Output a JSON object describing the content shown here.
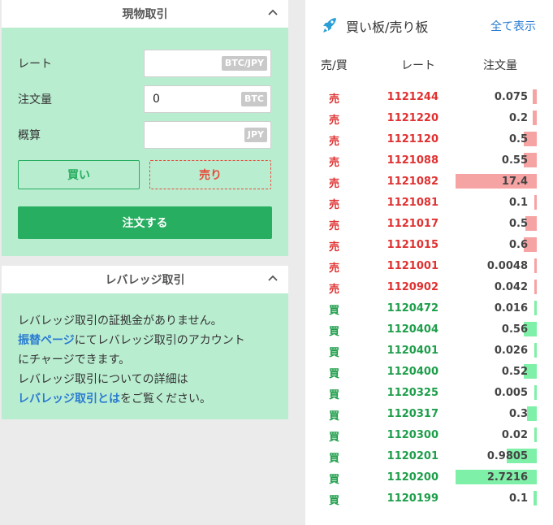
{
  "spot": {
    "title": "現物取引",
    "rate_label": "レート",
    "rate_value": "",
    "rate_unit": "BTC/JPY",
    "amount_label": "注文量",
    "amount_value": "0",
    "amount_unit": "BTC",
    "estimate_label": "概算",
    "estimate_value": "",
    "estimate_unit": "JPY",
    "buy_label": "買い",
    "sell_label": "売り",
    "order_label": "注文する"
  },
  "leverage": {
    "title": "レバレッジ取引",
    "line1": "レバレッジ取引の証拠金がありません。",
    "link1": "振替ページ",
    "line2_rest": "にてレバレッジ取引のアカウント",
    "line3": "にチャージできます。",
    "line4": "レバレッジ取引についての詳細は",
    "link2": "レバレッジ取引とは",
    "line5_rest": "をご覧ください。"
  },
  "orderbook": {
    "title": "買い板/売り板",
    "show_all": "全て表示",
    "col_side": "売/買",
    "col_rate": "レート",
    "col_qty": "注文量",
    "colors": {
      "sell": "#e03131",
      "buy": "#1e9e4a"
    },
    "rows": [
      {
        "side": "売",
        "type": "sell",
        "price": "1121244",
        "qty": "0.075",
        "depth": 0.05
      },
      {
        "side": "売",
        "type": "sell",
        "price": "1121220",
        "qty": "0.2",
        "depth": 0.05
      },
      {
        "side": "売",
        "type": "sell",
        "price": "1121120",
        "qty": "0.5",
        "depth": 0.16
      },
      {
        "side": "売",
        "type": "sell",
        "price": "1121088",
        "qty": "0.55",
        "depth": 0.16
      },
      {
        "side": "売",
        "type": "sell",
        "price": "1121082",
        "qty": "17.4",
        "depth": 1.0
      },
      {
        "side": "売",
        "type": "sell",
        "price": "1121081",
        "qty": "0.1",
        "depth": 0.02
      },
      {
        "side": "売",
        "type": "sell",
        "price": "1121017",
        "qty": "0.5",
        "depth": 0.14
      },
      {
        "side": "売",
        "type": "sell",
        "price": "1121015",
        "qty": "0.6",
        "depth": 0.16
      },
      {
        "side": "売",
        "type": "sell",
        "price": "1121001",
        "qty": "0.0048",
        "depth": 0.02
      },
      {
        "side": "売",
        "type": "sell",
        "price": "1120902",
        "qty": "0.042",
        "depth": 0.02
      },
      {
        "side": "買",
        "type": "buy",
        "price": "1120472",
        "qty": "0.016",
        "depth": 0.02
      },
      {
        "side": "買",
        "type": "buy",
        "price": "1120404",
        "qty": "0.56",
        "depth": 0.16
      },
      {
        "side": "買",
        "type": "buy",
        "price": "1120401",
        "qty": "0.026",
        "depth": 0.02
      },
      {
        "side": "買",
        "type": "buy",
        "price": "1120400",
        "qty": "0.52",
        "depth": 0.16
      },
      {
        "side": "買",
        "type": "buy",
        "price": "1120325",
        "qty": "0.005",
        "depth": 0.02
      },
      {
        "side": "買",
        "type": "buy",
        "price": "1120317",
        "qty": "0.3",
        "depth": 0.12
      },
      {
        "side": "買",
        "type": "buy",
        "price": "1120300",
        "qty": "0.02",
        "depth": 0.02
      },
      {
        "side": "買",
        "type": "buy",
        "price": "1120201",
        "qty": "0.9805",
        "depth": 0.37
      },
      {
        "side": "買",
        "type": "buy",
        "price": "1120200",
        "qty": "2.7216",
        "depth": 1.0
      },
      {
        "side": "買",
        "type": "buy",
        "price": "1120199",
        "qty": "0.1",
        "depth": 0.04
      }
    ]
  }
}
